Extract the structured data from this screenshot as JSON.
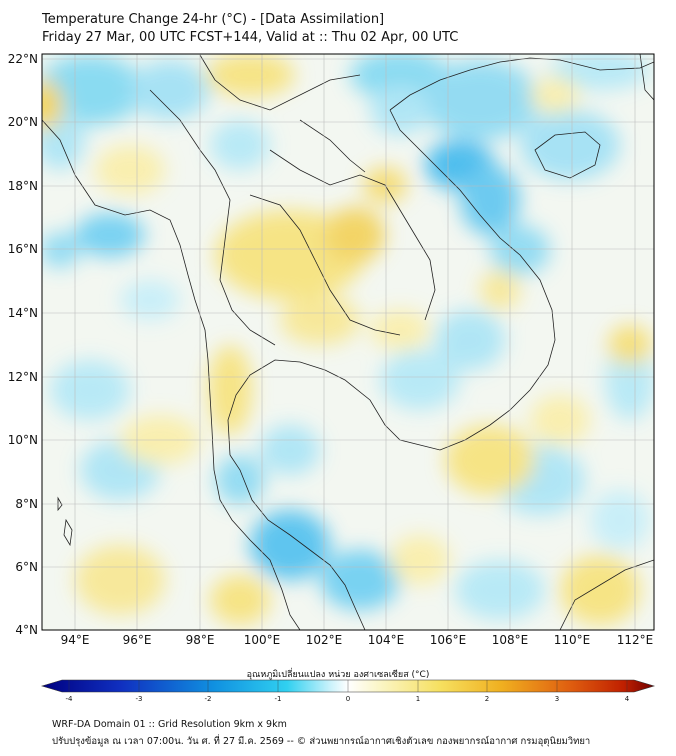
{
  "header": {
    "title": "Temperature Change 24-hr (°C) - [Data Assimilation]",
    "subtitle": "Friday 27 Mar, 00 UTC FCST+144, Valid at :: Thu 02 Apr, 00 UTC"
  },
  "map": {
    "lat_labels": [
      "22°N",
      "20°N",
      "18°N",
      "16°N",
      "14°N",
      "12°N",
      "10°N",
      "8°N",
      "6°N",
      "4°N"
    ],
    "lon_labels": [
      "94°E",
      "96°E",
      "98°E",
      "100°E",
      "102°E",
      "104°E",
      "106°E",
      "108°E",
      "110°E",
      "112°E"
    ]
  },
  "colorbar": {
    "label": "อุณหภูมิเปลี่ยนแปลง หน่วย องศาเซลเซียส (°C)",
    "ticks": [
      "-4",
      "-3",
      "-2",
      "-1",
      "0",
      "1",
      "2",
      "3",
      "4"
    ],
    "colors": {
      "min": "#000080",
      "cold": "#1ec8f0",
      "neutral": "#ffffff",
      "warm": "#f5e05a",
      "hot": "#e07010",
      "max": "#7a0000"
    }
  },
  "footer": {
    "line1": "WRF-DA Domain 01 :: Grid Resolution 9km x 9km",
    "line2": "ปรับปรุงข้อมูล ณ เวลา 07:00น. วัน ศ. ที่ 27 มี.ค. 2569 -- © ส่วนพยากรณ์อากาศเชิงตัวเลข กองพยากรณ์อากาศ กรมอุตุนิยมวิทยา"
  }
}
